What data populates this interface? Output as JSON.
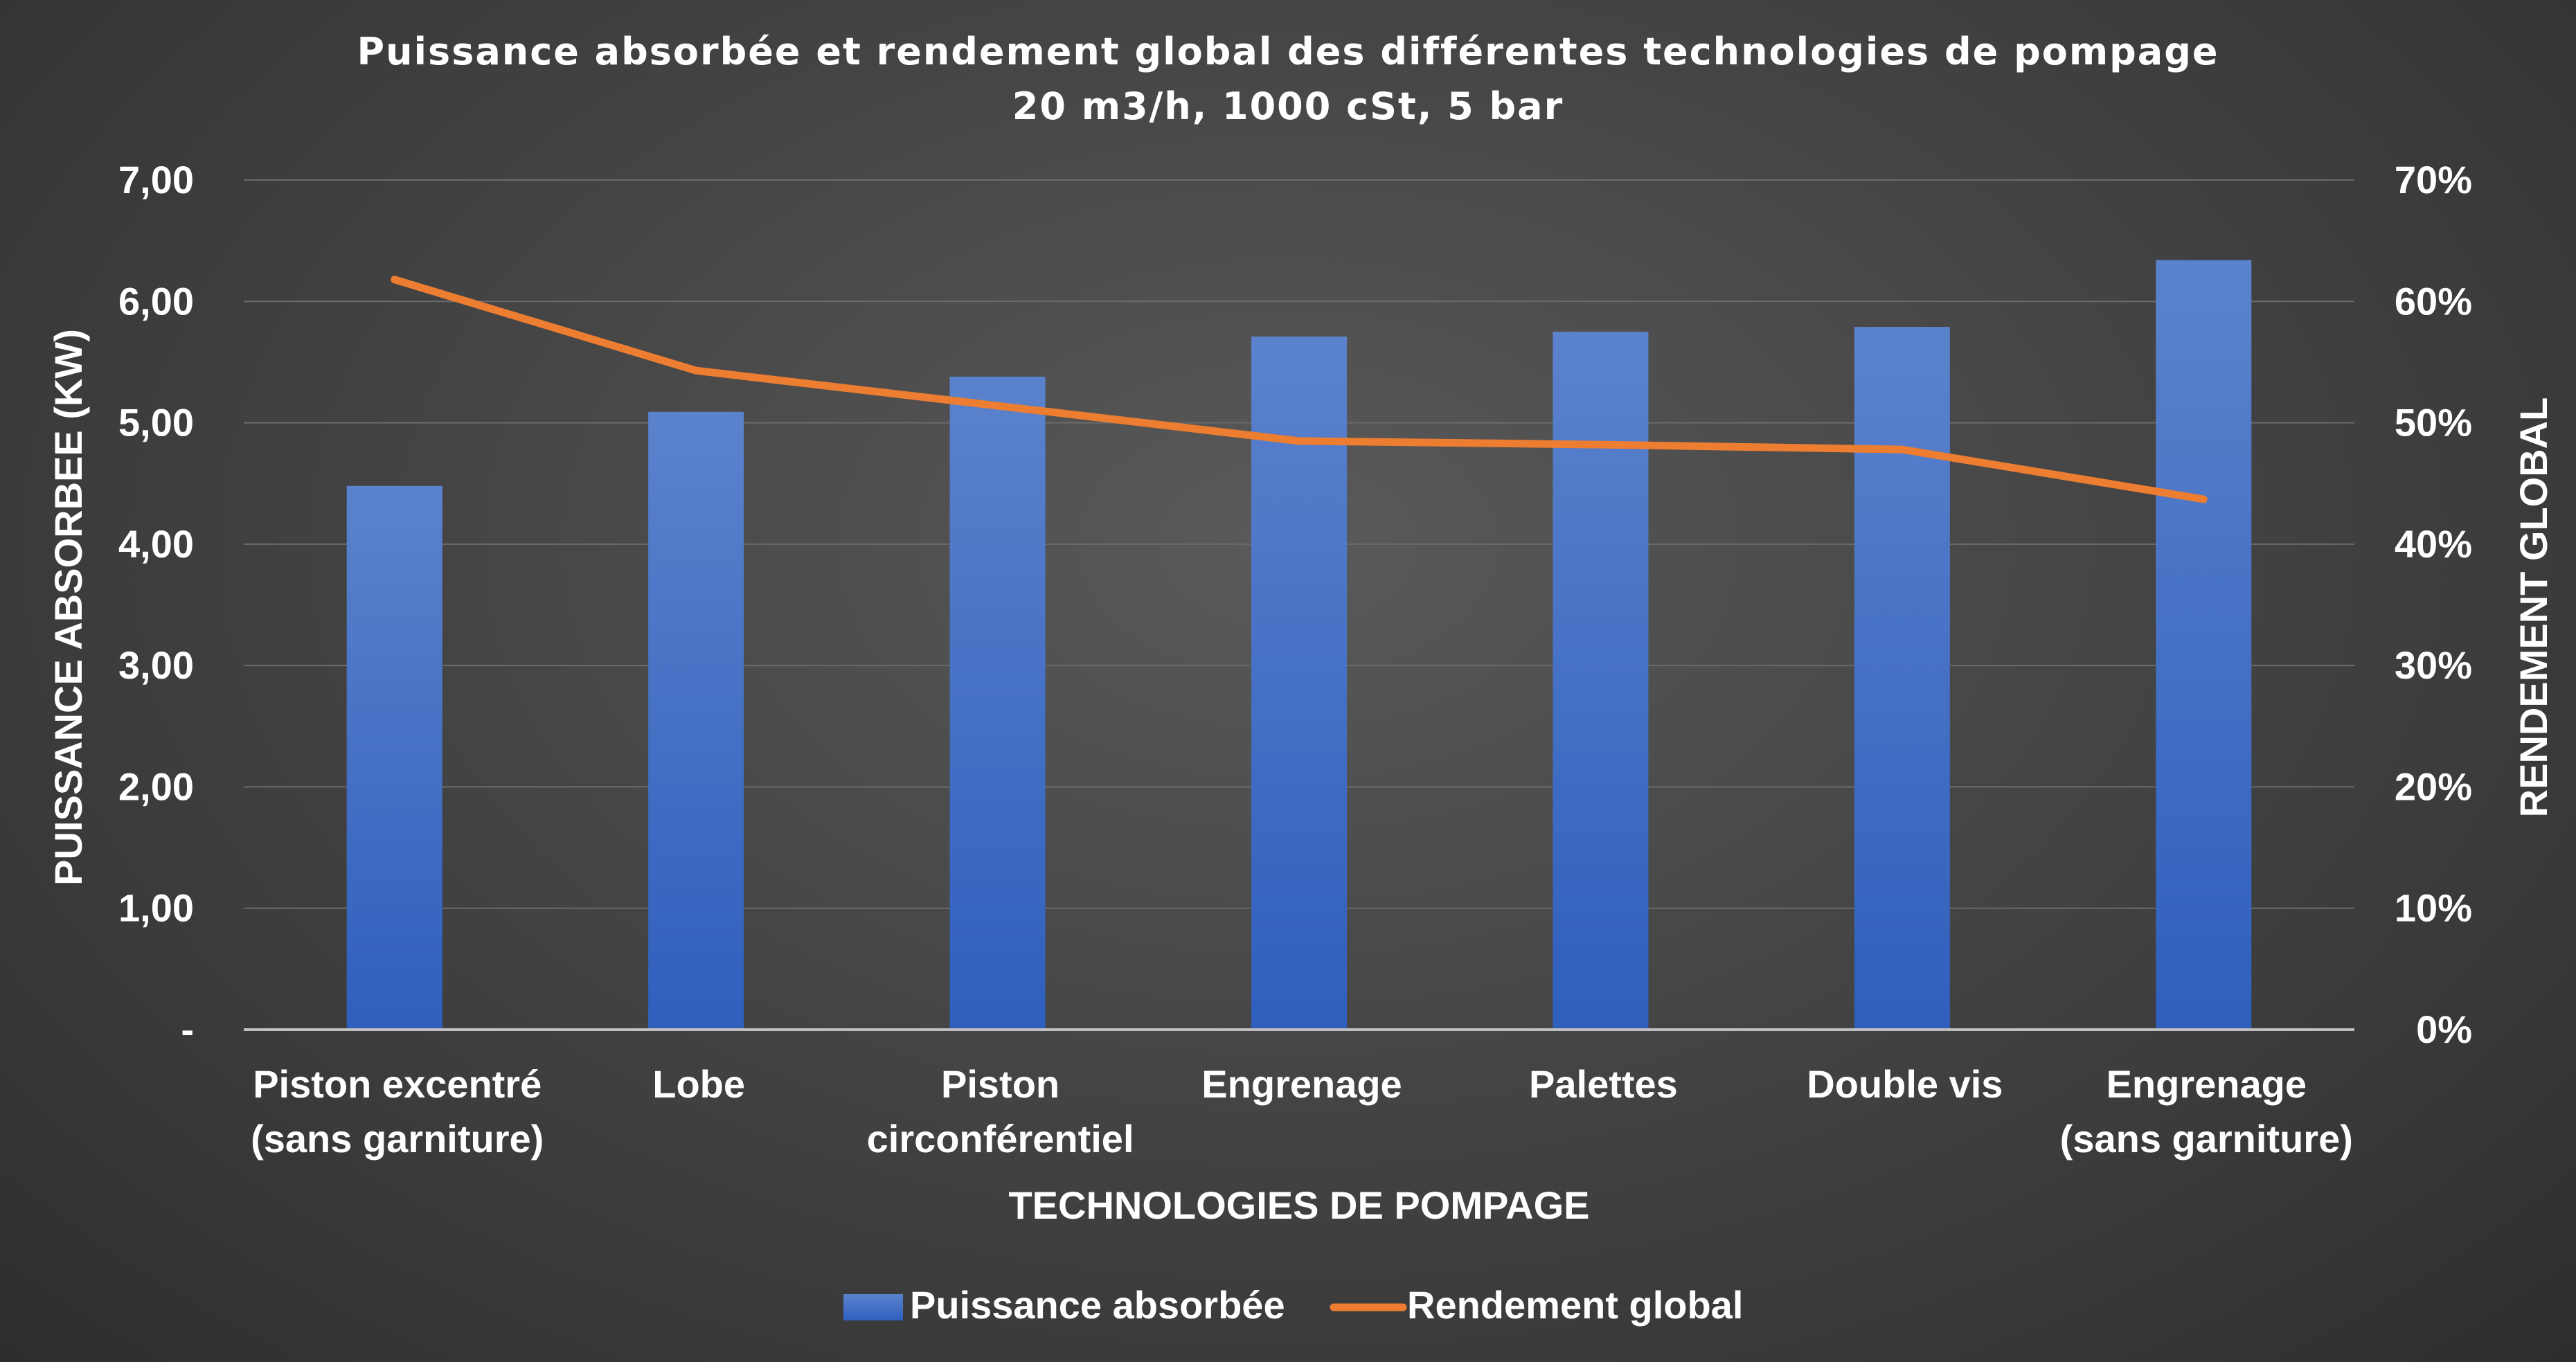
{
  "chart_data": {
    "type": "bar",
    "title": "Puissance absorbée et rendement global des différentes technologies de pompage",
    "subtitle": "20 m3/h, 1000 cSt, 5 bar",
    "xlabel": "TECHNOLOGIES DE POMPAGE",
    "ylabel": "PUISSANCE ABSORBEE (KW)",
    "y2label": "RENDEMENT GLOBAL",
    "categories": [
      [
        "Piston excentré",
        "(sans garniture)"
      ],
      [
        "Lobe"
      ],
      [
        "Piston",
        "circonférentiel"
      ],
      [
        "Engrenage"
      ],
      [
        "Palettes"
      ],
      [
        "Double vis"
      ],
      [
        "Engrenage",
        "(sans garniture)"
      ]
    ],
    "ylim": [
      0,
      7
    ],
    "y2lim": [
      0,
      0.7
    ],
    "yticks": [
      "-",
      "1,00",
      "2,00",
      "3,00",
      "4,00",
      "5,00",
      "6,00",
      "7,00"
    ],
    "y2ticks": [
      "0%",
      "10%",
      "20%",
      "30%",
      "40%",
      "50%",
      "60%",
      "70%"
    ],
    "grid": true,
    "legend_position": "bottom",
    "series": [
      {
        "name": "Puissance absorbée",
        "type": "bar",
        "axis": "left",
        "color": "#4472c4",
        "values": [
          4.48,
          5.09,
          5.38,
          5.71,
          5.75,
          5.79,
          6.34
        ]
      },
      {
        "name": "Rendement global",
        "type": "line",
        "axis": "right",
        "color": "#ed7d31",
        "values": [
          0.618,
          0.543,
          0.514,
          0.485,
          0.482,
          0.478,
          0.437
        ]
      }
    ]
  }
}
